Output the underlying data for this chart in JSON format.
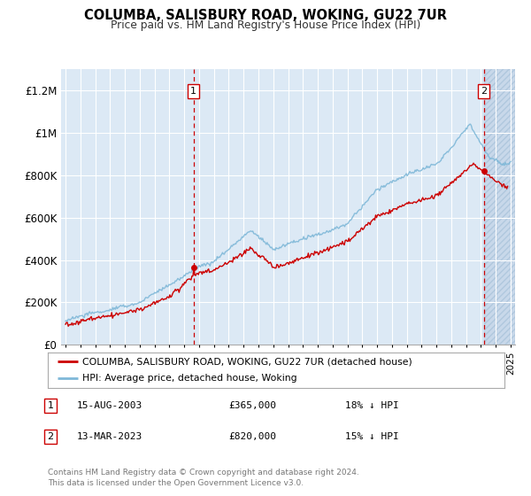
{
  "title": "COLUMBA, SALISBURY ROAD, WOKING, GU22 7UR",
  "subtitle": "Price paid vs. HM Land Registry's House Price Index (HPI)",
  "ylim": [
    0,
    1300000
  ],
  "yticks": [
    0,
    200000,
    400000,
    600000,
    800000,
    1000000,
    1200000
  ],
  "ytick_labels": [
    "£0",
    "£200K",
    "£400K",
    "£600K",
    "£800K",
    "£1M",
    "£1.2M"
  ],
  "bg_color": "#dce9f5",
  "hatch_color": "#c8d8ea",
  "grid_color": "#ffffff",
  "sale1_date_num": 2003.62,
  "sale1_price": 365000,
  "sale2_date_num": 2023.19,
  "sale2_price": 820000,
  "legend_line1": "COLUMBA, SALISBURY ROAD, WOKING, GU22 7UR (detached house)",
  "legend_line2": "HPI: Average price, detached house, Woking",
  "table_row1": [
    "1",
    "15-AUG-2003",
    "£365,000",
    "18% ↓ HPI"
  ],
  "table_row2": [
    "2",
    "13-MAR-2023",
    "£820,000",
    "15% ↓ HPI"
  ],
  "footnote": "Contains HM Land Registry data © Crown copyright and database right 2024.\nThis data is licensed under the Open Government Licence v3.0.",
  "line_color_red": "#cc0000",
  "line_color_blue": "#7fb8d8",
  "xmin": 1994.7,
  "xmax": 2025.3
}
